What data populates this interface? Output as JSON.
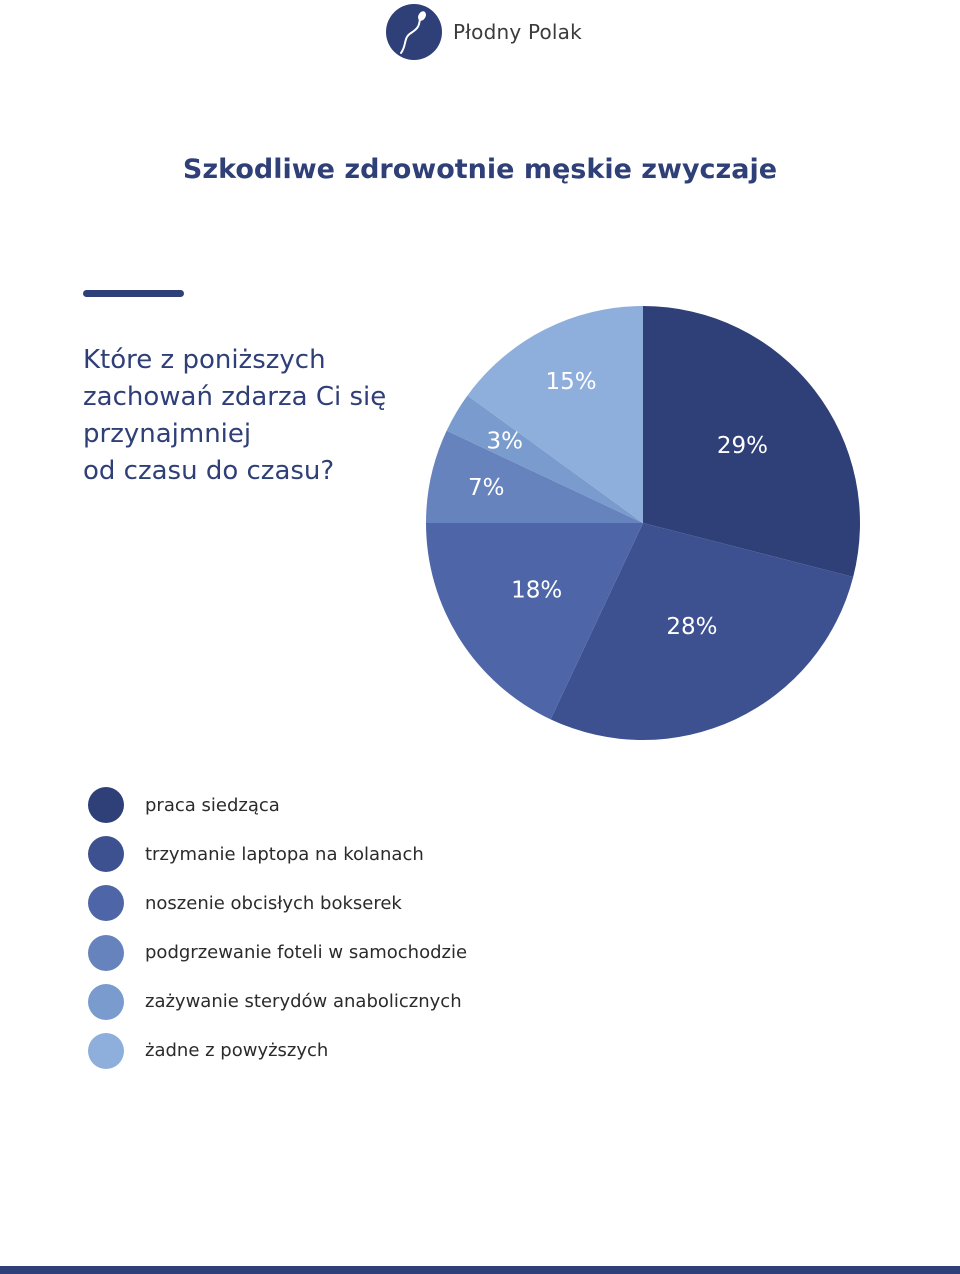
{
  "brand": {
    "name": "Płodny Polak"
  },
  "header": {
    "title": "Szkodliwe zdrowotnie męskie zwyczaje"
  },
  "question": "Które z poniższych\nzachowań zdarza Ci się\nprzynajmniej\nod czasu do czasu?",
  "colors": {
    "brand": "#2f3f77",
    "background": "#ffffff"
  },
  "chart_data": {
    "type": "pie",
    "start": "12 o'clock, clockwise",
    "slices": [
      {
        "label": "praca siedząca",
        "value": 29,
        "display": "29%",
        "color": "#2f3f77"
      },
      {
        "label": "trzymanie laptopa na kolanach",
        "value": 28,
        "display": "28%",
        "color": "#3d5190"
      },
      {
        "label": "noszenie obcisłych bokserek",
        "value": 18,
        "display": "18%",
        "color": "#4e66a7"
      },
      {
        "label": "podgrzewanie foteli w samochodzie",
        "value": 7,
        "display": "7%",
        "color": "#6683bd"
      },
      {
        "label": "zażywanie sterydów anabolicznych",
        "value": 3,
        "display": "3%",
        "color": "#7a9bcd"
      },
      {
        "label": "żadne z powyższych",
        "value": 15,
        "display": "15%",
        "color": "#8eaedb"
      }
    ],
    "legend_position": "bottom-left"
  }
}
